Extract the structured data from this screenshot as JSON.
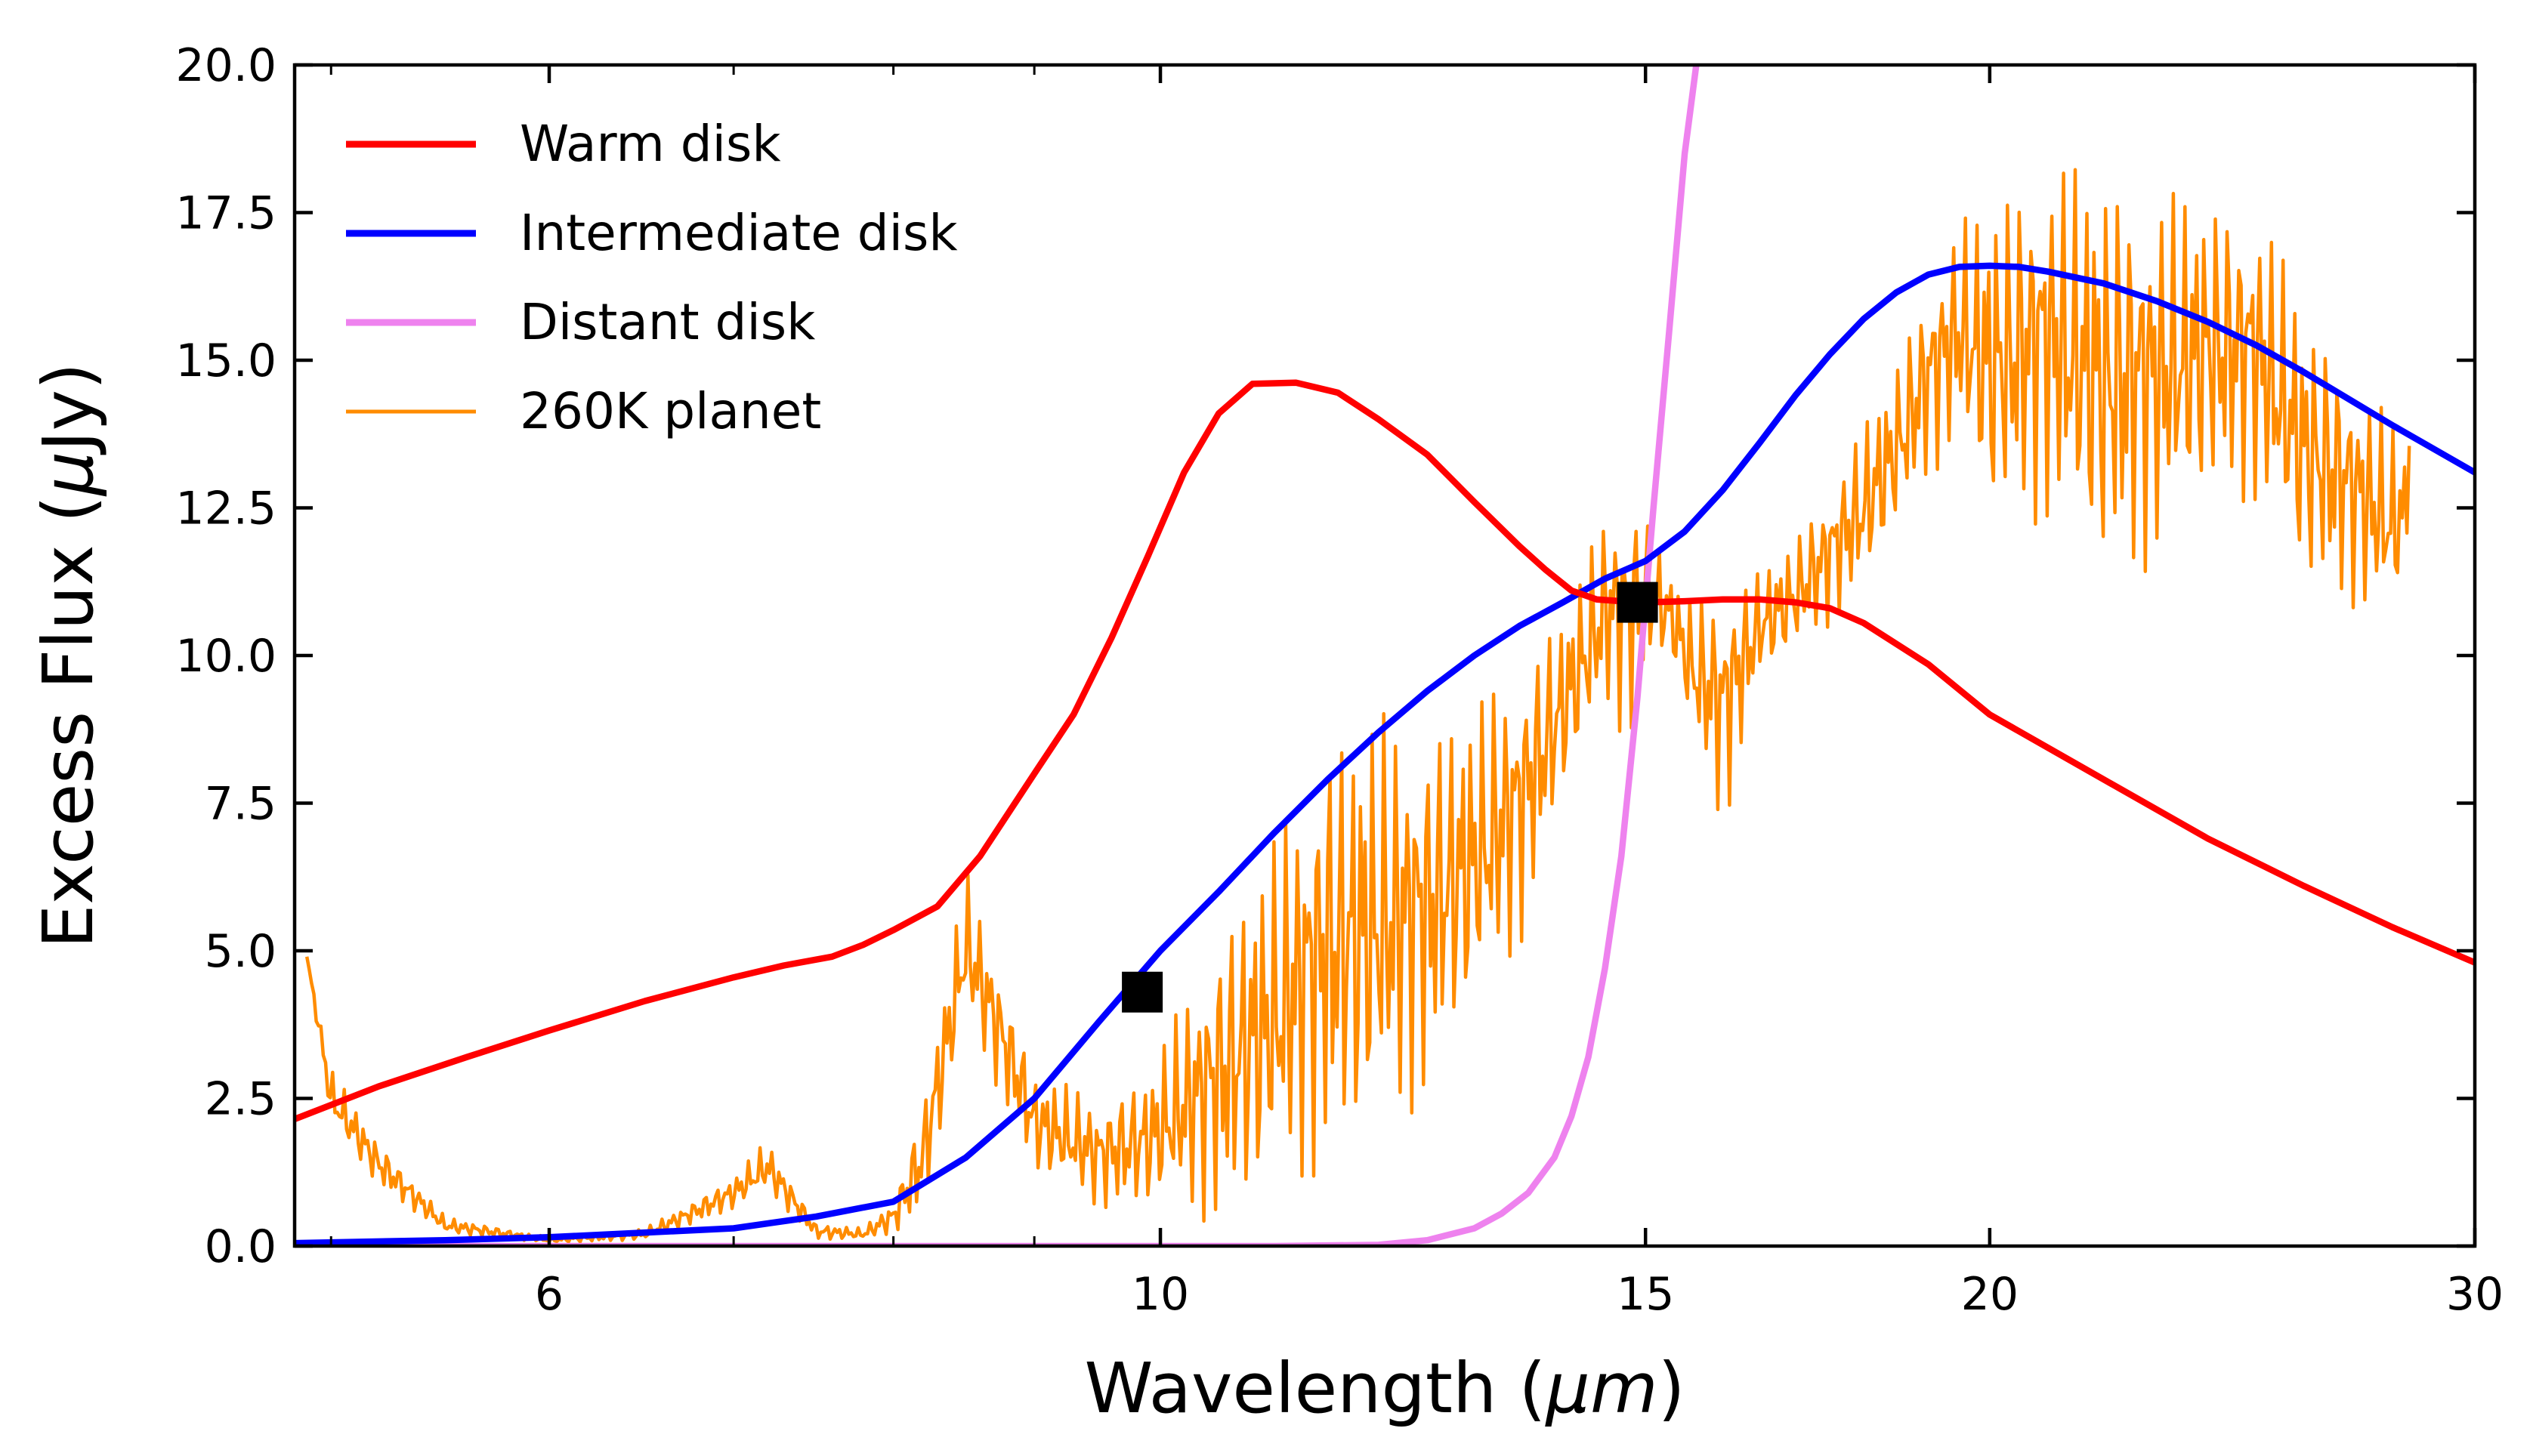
{
  "chart_data": {
    "type": "line",
    "x_scale": "log",
    "xlabel_pre": "Wavelength (",
    "xlabel_sym": "μm",
    "xlabel_post": ")",
    "ylabel_pre": "Excess Flux (",
    "ylabel_sym": "μ",
    "ylabel_post": "Jy)",
    "xlim": [
      4.85,
      30
    ],
    "ylim": [
      0,
      20
    ],
    "xticks": [
      6,
      10,
      15,
      20,
      30
    ],
    "xtick_labels": [
      "6",
      "10",
      "15",
      "20",
      "30"
    ],
    "minor_xticks": [
      5,
      7,
      8,
      9
    ],
    "yticks": [
      0,
      2.5,
      5,
      7.5,
      10,
      12.5,
      15,
      17.5,
      20
    ],
    "ytick_labels": [
      "0.0",
      "2.5",
      "5.0",
      "7.5",
      "10.0",
      "12.5",
      "15.0",
      "17.5",
      "20.0"
    ],
    "legend_position": "top-left",
    "series": [
      {
        "name": "Warm disk",
        "color": "#ff0000",
        "x": [
          4.85,
          5.2,
          5.6,
          6.0,
          6.5,
          7.0,
          7.3,
          7.6,
          7.8,
          8.0,
          8.3,
          8.6,
          9.0,
          9.3,
          9.6,
          9.9,
          10.2,
          10.5,
          10.8,
          11.2,
          11.6,
          12.0,
          12.5,
          13.0,
          13.5,
          13.8,
          14.1,
          14.4,
          14.7,
          15.0,
          15.5,
          16.0,
          16.5,
          17.0,
          17.5,
          18.0,
          19.0,
          20.0,
          22.0,
          24.0,
          26.0,
          28.0,
          30.0
        ],
        "values": [
          2.15,
          2.7,
          3.2,
          3.65,
          4.15,
          4.55,
          4.75,
          4.9,
          5.1,
          5.35,
          5.75,
          6.6,
          8.0,
          9.0,
          10.3,
          11.7,
          13.1,
          14.1,
          14.6,
          14.62,
          14.45,
          14.0,
          13.4,
          12.6,
          11.85,
          11.45,
          11.1,
          10.95,
          10.92,
          10.9,
          10.92,
          10.95,
          10.95,
          10.9,
          10.8,
          10.55,
          9.85,
          9.0,
          7.9,
          6.9,
          6.1,
          5.4,
          4.8
        ]
      },
      {
        "name": "Intermediate disk",
        "color": "#0000ff",
        "x": [
          4.85,
          5.5,
          6.0,
          7.0,
          7.5,
          8.0,
          8.5,
          9.0,
          9.5,
          10.0,
          10.5,
          11.0,
          11.5,
          12.0,
          12.5,
          13.0,
          13.5,
          14.0,
          14.5,
          15.0,
          15.5,
          16.0,
          16.5,
          17.0,
          17.5,
          18.0,
          18.5,
          19.0,
          19.5,
          20.0,
          20.5,
          21.0,
          22.0,
          23.0,
          24.0,
          25.0,
          26.0,
          28.0,
          30.0
        ],
        "values": [
          0.05,
          0.1,
          0.15,
          0.3,
          0.5,
          0.75,
          1.5,
          2.5,
          3.8,
          5.0,
          6.0,
          7.0,
          7.9,
          8.7,
          9.4,
          10.0,
          10.5,
          10.9,
          11.3,
          11.6,
          12.1,
          12.8,
          13.6,
          14.4,
          15.1,
          15.7,
          16.15,
          16.45,
          16.58,
          16.6,
          16.58,
          16.5,
          16.3,
          16.0,
          15.65,
          15.25,
          14.8,
          13.9,
          13.1
        ]
      },
      {
        "name": "Distant disk",
        "color": "#ee82ee",
        "x": [
          4.85,
          10.0,
          11.0,
          12.0,
          12.5,
          13.0,
          13.3,
          13.6,
          13.9,
          14.1,
          14.3,
          14.5,
          14.7,
          14.9,
          15.1,
          15.3,
          15.5,
          15.65
        ],
        "values": [
          0,
          0,
          0,
          0.02,
          0.1,
          0.3,
          0.55,
          0.9,
          1.5,
          2.2,
          3.2,
          4.7,
          6.6,
          9.3,
          12.5,
          15.5,
          18.5,
          20.0
        ]
      }
    ],
    "planet_series": {
      "name": "260K planet",
      "color": "#ff8c00",
      "x_start": 4.9,
      "x_end": 28.4,
      "envelope_x": [
        4.9,
        5.0,
        5.2,
        5.5,
        6.0,
        6.5,
        7.0,
        7.2,
        7.5,
        7.8,
        8.0,
        8.2,
        8.5,
        9.0,
        9.5,
        9.9,
        10.5,
        11.0,
        11.5,
        12.0,
        12.5,
        13.0,
        13.5,
        14.0,
        14.5,
        14.8,
        15.0,
        15.3,
        15.6,
        16.0,
        16.5,
        17.0,
        17.5,
        18.0,
        18.5,
        19.0,
        19.5,
        20.0,
        21.0,
        22.0,
        23.0,
        24.0,
        25.0,
        26.0,
        27.0,
        28.0,
        28.4
      ],
      "envelope_high": [
        4.9,
        3.0,
        1.8,
        0.5,
        0.15,
        0.3,
        1.2,
        1.8,
        0.4,
        0.3,
        0.8,
        2.5,
        6.4,
        3.0,
        2.5,
        3.0,
        5.5,
        7.0,
        9.0,
        9.2,
        9.0,
        9.3,
        10.0,
        10.8,
        12.5,
        13.0,
        12.5,
        11.5,
        11.0,
        11.3,
        11.5,
        12.0,
        13.0,
        14.0,
        15.0,
        16.5,
        17.5,
        17.8,
        18.6,
        18.3,
        18.0,
        17.9,
        17.8,
        16.0,
        15.0,
        14.0,
        13.5
      ],
      "envelope_low": [
        4.9,
        2.0,
        1.0,
        0.2,
        0.05,
        0.1,
        0.6,
        0.9,
        0.1,
        0.1,
        0.2,
        0.5,
        3.8,
        1.2,
        0.6,
        0.6,
        0.3,
        0.7,
        1.2,
        1.6,
        2.5,
        3.8,
        5.0,
        7.5,
        9.0,
        8.5,
        9.5,
        10.0,
        8.5,
        7.0,
        9.5,
        10.0,
        10.5,
        11.0,
        12.0,
        13.0,
        13.5,
        12.0,
        12.2,
        11.0,
        11.5,
        12.5,
        12.5,
        11.0,
        10.8,
        10.4,
        11.5
      ],
      "end_value": 13.55
    },
    "markers": [
      {
        "x": 9.85,
        "y": 4.3,
        "color": "#000000",
        "shape": "square"
      },
      {
        "x": 14.9,
        "y": 10.9,
        "color": "#000000",
        "shape": "square"
      }
    ]
  }
}
